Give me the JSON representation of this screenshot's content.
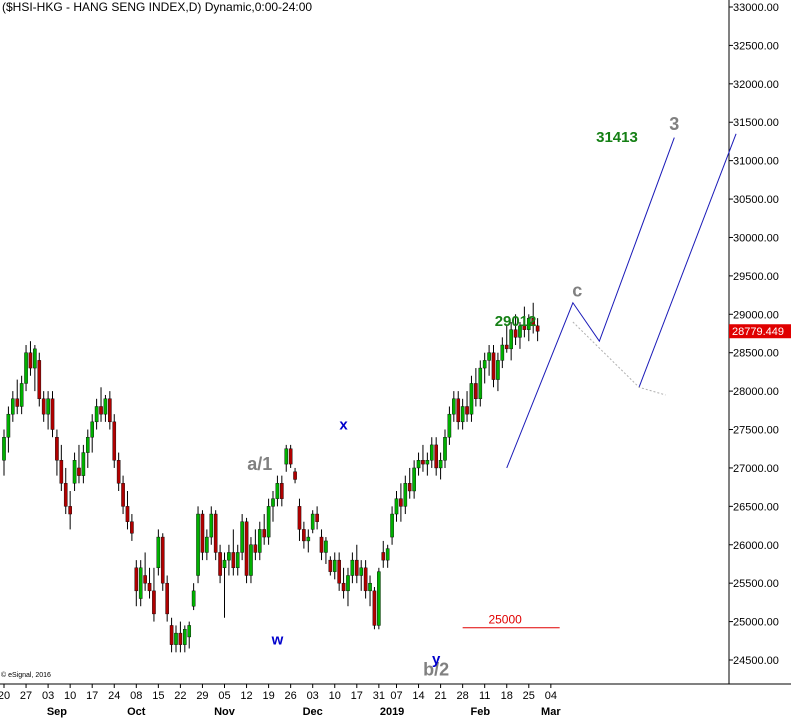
{
  "title": "($HSI-HKG - HANG SENG INDEX,D) Dynamic,0:00-24:00",
  "copyright": "© eSignal, 2016",
  "colors": {
    "up": "#00b000",
    "down": "#b00000",
    "wick": "#000000",
    "projection": "#1a1ab8",
    "price_tag": "#e00000",
    "grid": "#000000"
  },
  "chart_data": {
    "type": "candlestick",
    "ylim": [
      24250,
      33050
    ],
    "yticks": [
      {
        "value": 33000,
        "label": "33000.00"
      },
      {
        "value": 32500,
        "label": "32500.00"
      },
      {
        "value": 32000,
        "label": "32000.00"
      },
      {
        "value": 31500,
        "label": "31500.00"
      },
      {
        "value": 31000,
        "label": "31000.00"
      },
      {
        "value": 30500,
        "label": "30500.00"
      },
      {
        "value": 30000,
        "label": "30000.00"
      },
      {
        "value": 29500,
        "label": "29500.00"
      },
      {
        "value": 29000,
        "label": "29000.00"
      },
      {
        "value": 28500,
        "label": "28500.00"
      },
      {
        "value": 28000,
        "label": "28000.00"
      },
      {
        "value": 27500,
        "label": "27500.00"
      },
      {
        "value": 27000,
        "label": "27000.00"
      },
      {
        "value": 26500,
        "label": "26500.00"
      },
      {
        "value": 26000,
        "label": "26000.00"
      },
      {
        "value": 25500,
        "label": "25500.00"
      },
      {
        "value": 25000,
        "label": "25000.00"
      },
      {
        "value": 24500,
        "label": "24500.00"
      }
    ],
    "last_price": {
      "value": 28779.449,
      "label": "28779.449"
    },
    "xticks": [
      {
        "x": 0,
        "label": "20"
      },
      {
        "x": 5,
        "label": "27"
      },
      {
        "x": 10,
        "label": "03"
      },
      {
        "x": 15,
        "label": "10"
      },
      {
        "x": 20,
        "label": "17"
      },
      {
        "x": 25,
        "label": "24"
      },
      {
        "x": 30,
        "label": "08"
      },
      {
        "x": 35,
        "label": "15"
      },
      {
        "x": 40,
        "label": "22"
      },
      {
        "x": 45,
        "label": "29"
      },
      {
        "x": 50,
        "label": "05"
      },
      {
        "x": 55,
        "label": "12"
      },
      {
        "x": 60,
        "label": "19"
      },
      {
        "x": 65,
        "label": "26"
      },
      {
        "x": 70,
        "label": "03"
      },
      {
        "x": 75,
        "label": "10"
      },
      {
        "x": 80,
        "label": "17"
      },
      {
        "x": 85,
        "label": "31"
      },
      {
        "x": 89,
        "label": "07"
      },
      {
        "x": 94,
        "label": "14"
      },
      {
        "x": 99,
        "label": "21"
      },
      {
        "x": 104,
        "label": "28"
      },
      {
        "x": 109,
        "label": "11"
      },
      {
        "x": 114,
        "label": "18"
      },
      {
        "x": 119,
        "label": "25"
      },
      {
        "x": 124,
        "label": "04"
      }
    ],
    "xmonths": [
      {
        "x": 12,
        "label": "Sep"
      },
      {
        "x": 30,
        "label": "Oct"
      },
      {
        "x": 50,
        "label": "Nov"
      },
      {
        "x": 70,
        "label": "Dec"
      },
      {
        "x": 88,
        "label": "2019"
      },
      {
        "x": 108,
        "label": "Feb"
      },
      {
        "x": 124,
        "label": "Mar"
      }
    ],
    "candles": [
      {
        "o": 27100,
        "h": 27500,
        "l": 26900,
        "c": 27400
      },
      {
        "o": 27400,
        "h": 27800,
        "l": 27200,
        "c": 27700
      },
      {
        "o": 27700,
        "h": 28000,
        "l": 27600,
        "c": 27900
      },
      {
        "o": 27900,
        "h": 28150,
        "l": 27700,
        "c": 27800
      },
      {
        "o": 27800,
        "h": 28200,
        "l": 27700,
        "c": 28100
      },
      {
        "o": 28100,
        "h": 28600,
        "l": 28000,
        "c": 28500
      },
      {
        "o": 28500,
        "h": 28650,
        "l": 28200,
        "c": 28300
      },
      {
        "o": 28300,
        "h": 28600,
        "l": 28000,
        "c": 28550
      },
      {
        "o": 28400,
        "h": 28500,
        "l": 27800,
        "c": 27900
      },
      {
        "o": 27900,
        "h": 28000,
        "l": 27600,
        "c": 27700
      },
      {
        "o": 27700,
        "h": 28000,
        "l": 27500,
        "c": 27900
      },
      {
        "o": 27900,
        "h": 28000,
        "l": 27400,
        "c": 27500
      },
      {
        "o": 27400,
        "h": 27500,
        "l": 26900,
        "c": 27100
      },
      {
        "o": 27100,
        "h": 27300,
        "l": 26700,
        "c": 26800
      },
      {
        "o": 26800,
        "h": 27000,
        "l": 26400,
        "c": 26500
      },
      {
        "o": 26500,
        "h": 26700,
        "l": 26200,
        "c": 26400
      },
      {
        "o": 26800,
        "h": 27200,
        "l": 26700,
        "c": 27100
      },
      {
        "o": 27000,
        "h": 27300,
        "l": 26800,
        "c": 26900
      },
      {
        "o": 26900,
        "h": 27300,
        "l": 26800,
        "c": 27200
      },
      {
        "o": 27200,
        "h": 27500,
        "l": 27000,
        "c": 27400
      },
      {
        "o": 27400,
        "h": 27700,
        "l": 27200,
        "c": 27600
      },
      {
        "o": 27600,
        "h": 27900,
        "l": 27500,
        "c": 27800
      },
      {
        "o": 27800,
        "h": 28050,
        "l": 27600,
        "c": 27700
      },
      {
        "o": 27700,
        "h": 27950,
        "l": 27600,
        "c": 27900
      },
      {
        "o": 27900,
        "h": 28000,
        "l": 27500,
        "c": 27600
      },
      {
        "o": 27600,
        "h": 27700,
        "l": 27000,
        "c": 27100
      },
      {
        "o": 27100,
        "h": 27200,
        "l": 26700,
        "c": 26800
      },
      {
        "o": 26800,
        "h": 26900,
        "l": 26400,
        "c": 26500
      },
      {
        "o": 26500,
        "h": 26700,
        "l": 26200,
        "c": 26300
      },
      {
        "o": 26300,
        "h": 26400,
        "l": 26050,
        "c": 26150
      },
      {
        "o": 25700,
        "h": 25800,
        "l": 25200,
        "c": 25400
      },
      {
        "o": 25300,
        "h": 25800,
        "l": 25200,
        "c": 25700
      },
      {
        "o": 25600,
        "h": 25900,
        "l": 25400,
        "c": 25500
      },
      {
        "o": 25500,
        "h": 25700,
        "l": 25300,
        "c": 25400
      },
      {
        "o": 25400,
        "h": 25700,
        "l": 25000,
        "c": 25100
      },
      {
        "o": 25700,
        "h": 26200,
        "l": 25600,
        "c": 26100
      },
      {
        "o": 26100,
        "h": 26150,
        "l": 25400,
        "c": 25500
      },
      {
        "o": 25500,
        "h": 25600,
        "l": 25000,
        "c": 25100
      },
      {
        "o": 24950,
        "h": 25050,
        "l": 24600,
        "c": 24700
      },
      {
        "o": 24700,
        "h": 24950,
        "l": 24600,
        "c": 24850
      },
      {
        "o": 24850,
        "h": 25000,
        "l": 24600,
        "c": 24700
      },
      {
        "o": 24700,
        "h": 24950,
        "l": 24600,
        "c": 24900
      },
      {
        "o": 24800,
        "h": 25000,
        "l": 24650,
        "c": 24950
      },
      {
        "o": 25200,
        "h": 25500,
        "l": 25150,
        "c": 25400
      },
      {
        "o": 25600,
        "h": 26500,
        "l": 25500,
        "c": 26400
      },
      {
        "o": 26400,
        "h": 26450,
        "l": 25800,
        "c": 25900
      },
      {
        "o": 25900,
        "h": 26200,
        "l": 25800,
        "c": 26100
      },
      {
        "o": 26100,
        "h": 26500,
        "l": 26000,
        "c": 26400
      },
      {
        "o": 26400,
        "h": 26450,
        "l": 25800,
        "c": 25900
      },
      {
        "o": 25900,
        "h": 26000,
        "l": 25500,
        "c": 25600
      },
      {
        "o": 25700,
        "h": 25900,
        "l": 25050,
        "c": 25800
      },
      {
        "o": 25800,
        "h": 26000,
        "l": 25600,
        "c": 25900
      },
      {
        "o": 25900,
        "h": 26200,
        "l": 25600,
        "c": 25700
      },
      {
        "o": 25700,
        "h": 26000,
        "l": 25600,
        "c": 25900
      },
      {
        "o": 25900,
        "h": 26400,
        "l": 25800,
        "c": 26300
      },
      {
        "o": 26300,
        "h": 26350,
        "l": 25500,
        "c": 25600
      },
      {
        "o": 25600,
        "h": 26100,
        "l": 25500,
        "c": 26000
      },
      {
        "o": 26000,
        "h": 26200,
        "l": 25800,
        "c": 25900
      },
      {
        "o": 25900,
        "h": 26300,
        "l": 25800,
        "c": 26200
      },
      {
        "o": 26200,
        "h": 26400,
        "l": 26000,
        "c": 26100
      },
      {
        "o": 26100,
        "h": 26600,
        "l": 26000,
        "c": 26500
      },
      {
        "o": 26500,
        "h": 26700,
        "l": 26300,
        "c": 26600
      },
      {
        "o": 26600,
        "h": 26900,
        "l": 26500,
        "c": 26800
      },
      {
        "o": 26800,
        "h": 26900,
        "l": 26500,
        "c": 26600
      },
      {
        "o": 27050,
        "h": 27300,
        "l": 26950,
        "c": 27250
      },
      {
        "o": 27250,
        "h": 27300,
        "l": 27000,
        "c": 27050
      },
      {
        "o": 26950,
        "h": 27000,
        "l": 26800,
        "c": 26850
      },
      {
        "o": 26500,
        "h": 26600,
        "l": 26050,
        "c": 26200
      },
      {
        "o": 26200,
        "h": 26300,
        "l": 25950,
        "c": 26050
      },
      {
        "o": 26050,
        "h": 26200,
        "l": 25900,
        "c": 26100
      },
      {
        "o": 26200,
        "h": 26450,
        "l": 26150,
        "c": 26400
      },
      {
        "o": 26400,
        "h": 26500,
        "l": 26200,
        "c": 26300
      },
      {
        "o": 26100,
        "h": 26200,
        "l": 25800,
        "c": 25900
      },
      {
        "o": 25900,
        "h": 26100,
        "l": 25750,
        "c": 26050
      },
      {
        "o": 25800,
        "h": 25850,
        "l": 25600,
        "c": 25650
      },
      {
        "o": 25650,
        "h": 25900,
        "l": 25550,
        "c": 25800
      },
      {
        "o": 25800,
        "h": 25900,
        "l": 25400,
        "c": 25500
      },
      {
        "o": 25500,
        "h": 25700,
        "l": 25300,
        "c": 25400
      },
      {
        "o": 25400,
        "h": 25700,
        "l": 25200,
        "c": 25600
      },
      {
        "o": 25600,
        "h": 25900,
        "l": 25500,
        "c": 25800
      },
      {
        "o": 25800,
        "h": 26000,
        "l": 25500,
        "c": 25600
      },
      {
        "o": 25600,
        "h": 25800,
        "l": 25400,
        "c": 25700
      },
      {
        "o": 25700,
        "h": 25800,
        "l": 25300,
        "c": 25400
      },
      {
        "o": 25400,
        "h": 25600,
        "l": 25200,
        "c": 25500
      },
      {
        "o": 25400,
        "h": 25450,
        "l": 24900,
        "c": 24950
      },
      {
        "o": 24950,
        "h": 25700,
        "l": 24900,
        "c": 25650
      },
      {
        "o": 25900,
        "h": 26050,
        "l": 25700,
        "c": 25800
      },
      {
        "o": 25800,
        "h": 26000,
        "l": 25700,
        "c": 25950
      },
      {
        "o": 26100,
        "h": 26500,
        "l": 26000,
        "c": 26400
      },
      {
        "o": 26400,
        "h": 26700,
        "l": 26300,
        "c": 26600
      },
      {
        "o": 26600,
        "h": 26800,
        "l": 26300,
        "c": 26500
      },
      {
        "o": 26500,
        "h": 26900,
        "l": 26400,
        "c": 26800
      },
      {
        "o": 26800,
        "h": 27000,
        "l": 26600,
        "c": 26700
      },
      {
        "o": 26700,
        "h": 27100,
        "l": 26600,
        "c": 27000
      },
      {
        "o": 27000,
        "h": 27200,
        "l": 26900,
        "c": 27100
      },
      {
        "o": 27100,
        "h": 27300,
        "l": 26950,
        "c": 27050
      },
      {
        "o": 27050,
        "h": 27200,
        "l": 26900,
        "c": 27100
      },
      {
        "o": 27100,
        "h": 27400,
        "l": 27000,
        "c": 27300
      },
      {
        "o": 27300,
        "h": 27400,
        "l": 26900,
        "c": 27000
      },
      {
        "o": 27000,
        "h": 27200,
        "l": 26850,
        "c": 27100
      },
      {
        "o": 27100,
        "h": 27500,
        "l": 27000,
        "c": 27400
      },
      {
        "o": 27400,
        "h": 27800,
        "l": 27300,
        "c": 27700
      },
      {
        "o": 27700,
        "h": 28000,
        "l": 27600,
        "c": 27900
      },
      {
        "o": 27900,
        "h": 28000,
        "l": 27500,
        "c": 27600
      },
      {
        "o": 27600,
        "h": 27900,
        "l": 27500,
        "c": 27800
      },
      {
        "o": 27800,
        "h": 28000,
        "l": 27600,
        "c": 27700
      },
      {
        "o": 27700,
        "h": 28200,
        "l": 27600,
        "c": 28100
      },
      {
        "o": 28100,
        "h": 28300,
        "l": 27800,
        "c": 27900
      },
      {
        "o": 27900,
        "h": 28400,
        "l": 27800,
        "c": 28300
      },
      {
        "o": 28300,
        "h": 28500,
        "l": 28100,
        "c": 28400
      },
      {
        "o": 28400,
        "h": 28600,
        "l": 28200,
        "c": 28500
      },
      {
        "o": 28500,
        "h": 28600,
        "l": 28050,
        "c": 28150
      },
      {
        "o": 28150,
        "h": 28500,
        "l": 28000,
        "c": 28400
      },
      {
        "o": 28400,
        "h": 28700,
        "l": 28300,
        "c": 28600
      },
      {
        "o": 28600,
        "h": 28850,
        "l": 28500,
        "c": 28550
      },
      {
        "o": 28550,
        "h": 28900,
        "l": 28400,
        "c": 28800
      },
      {
        "o": 28800,
        "h": 29000,
        "l": 28600,
        "c": 28700
      },
      {
        "o": 28700,
        "h": 28900,
        "l": 28550,
        "c": 28850
      },
      {
        "o": 28850,
        "h": 29100,
        "l": 28700,
        "c": 28800
      },
      {
        "o": 28800,
        "h": 29000,
        "l": 28650,
        "c": 28950
      },
      {
        "o": 28950,
        "h": 29150,
        "l": 28750,
        "c": 28850
      },
      {
        "o": 28850,
        "h": 28950,
        "l": 28650,
        "c": 28779
      }
    ],
    "projection_path": [
      {
        "x": 114,
        "y": 27000
      },
      {
        "x": 129,
        "y": 29150
      },
      {
        "x": 135,
        "y": 28650
      },
      {
        "x": 152,
        "y": 31300
      }
    ],
    "projection_channel": [
      {
        "x": 144,
        "y": 28050
      },
      {
        "x": 166,
        "y": 31350
      }
    ],
    "projection_dotted": [
      {
        "x": 129,
        "y": 28900
      },
      {
        "x": 144,
        "y": 28050
      },
      {
        "x": 150,
        "y": 27950
      }
    ],
    "support_line": {
      "value": 24920,
      "x0": 104,
      "x1": 126,
      "label": "25000"
    },
    "annotations": [
      {
        "label": "a/1",
        "x": 58,
        "y": 26970,
        "color": "#808080",
        "size": 18
      },
      {
        "label": "b/2",
        "x": 98,
        "y": 24300,
        "color": "#808080",
        "size": 18
      },
      {
        "label": "w",
        "x": 62,
        "y": 24700,
        "color": "#0000cc",
        "size": 15
      },
      {
        "label": "x",
        "x": 77,
        "y": 27500,
        "color": "#0000cc",
        "size": 15
      },
      {
        "label": "y",
        "x": 98,
        "y": 24450,
        "color": "#0000cc",
        "size": 15
      },
      {
        "label": "c",
        "x": 130,
        "y": 29230,
        "color": "#808080",
        "size": 18
      },
      {
        "label": "3",
        "x": 152,
        "y": 31400,
        "color": "#808080",
        "size": 18
      },
      {
        "label": "29012",
        "x": 116,
        "y": 28850,
        "color": "#158015",
        "size": 15
      },
      {
        "label": "31413",
        "x": 139,
        "y": 31240,
        "color": "#158015",
        "size": 15
      }
    ]
  }
}
